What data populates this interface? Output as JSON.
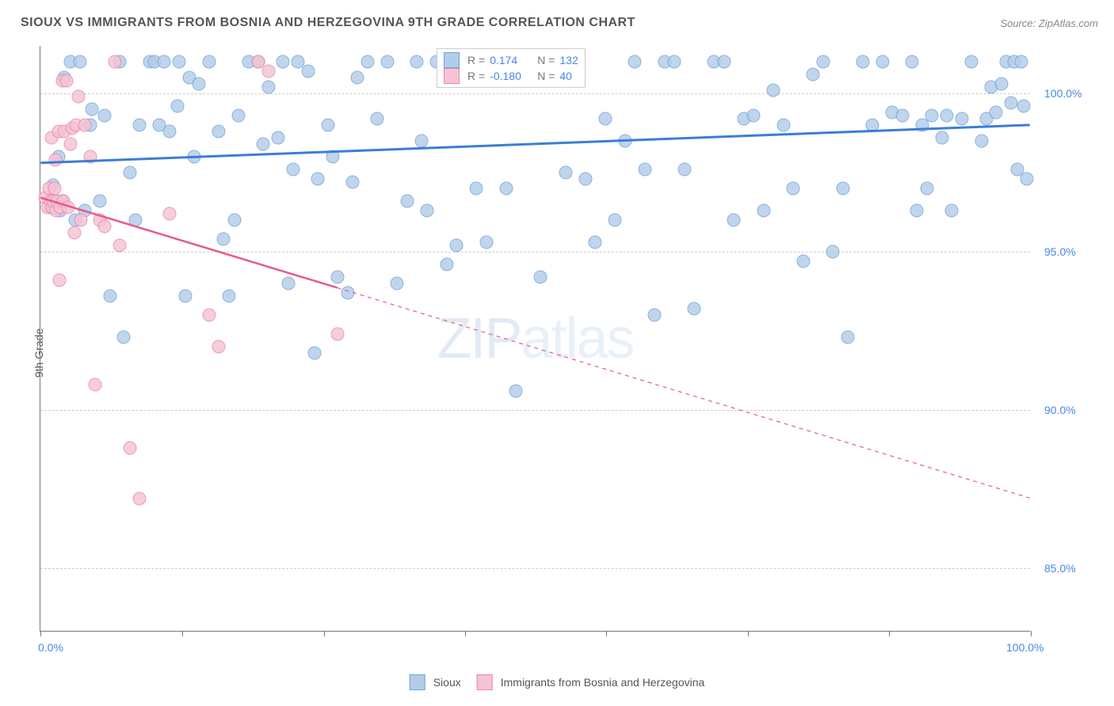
{
  "title": "SIOUX VS IMMIGRANTS FROM BOSNIA AND HERZEGOVINA 9TH GRADE CORRELATION CHART",
  "source_label": "Source: ",
  "source_name": "ZipAtlas.com",
  "y_axis_label": "9th Grade",
  "watermark_heavy": "ZIP",
  "watermark_light": "atlas",
  "chart": {
    "type": "scatter",
    "background_color": "#ffffff",
    "grid_color": "#cccccc",
    "axis_color": "#777777",
    "xlim": [
      0,
      100
    ],
    "ylim": [
      83,
      101.5
    ],
    "y_ticks": [
      {
        "v": 85.0,
        "label": "85.0%"
      },
      {
        "v": 90.0,
        "label": "90.0%"
      },
      {
        "v": 95.0,
        "label": "95.0%"
      },
      {
        "v": 100.0,
        "label": "100.0%"
      }
    ],
    "x_ticks": [
      0,
      14.3,
      28.6,
      42.9,
      57.1,
      71.4,
      85.7,
      100
    ],
    "x_range_labels": {
      "min": "0.0%",
      "max": "100.0%"
    },
    "y_tick_label_color": "#4a86e8",
    "marker_radius": 8.5,
    "series": [
      {
        "name": "Sioux",
        "fill": "#b3cde8",
        "stroke": "#6fa3db",
        "R": "0.174",
        "N": "132",
        "regression": {
          "x1": 0,
          "y1": 97.8,
          "x2": 100,
          "y2": 99.0,
          "stroke": "#3b7dd8",
          "width": 3,
          "dash_after_x": null
        },
        "points": [
          [
            1,
            96.4
          ],
          [
            1.5,
            96.6
          ],
          [
            2,
            96.3
          ],
          [
            2.2,
            96.6
          ],
          [
            1.3,
            97.1
          ],
          [
            1.8,
            98.0
          ],
          [
            2.4,
            100.5
          ],
          [
            3,
            101.0
          ],
          [
            3.5,
            96.0
          ],
          [
            4,
            101.0
          ],
          [
            4.5,
            96.3
          ],
          [
            5,
            99.0
          ],
          [
            5.2,
            99.5
          ],
          [
            6,
            96.6
          ],
          [
            6.5,
            99.3
          ],
          [
            7,
            93.6
          ],
          [
            8,
            101.0
          ],
          [
            8.4,
            92.3
          ],
          [
            9,
            97.5
          ],
          [
            9.6,
            96.0
          ],
          [
            10,
            99.0
          ],
          [
            11,
            101.0
          ],
          [
            11.5,
            101.0
          ],
          [
            12,
            99.0
          ],
          [
            12.5,
            101.0
          ],
          [
            13,
            98.8
          ],
          [
            13.8,
            99.6
          ],
          [
            14,
            101.0
          ],
          [
            14.6,
            93.6
          ],
          [
            15,
            100.5
          ],
          [
            15.5,
            98.0
          ],
          [
            16,
            100.3
          ],
          [
            17,
            101.0
          ],
          [
            18,
            98.8
          ],
          [
            18.5,
            95.4
          ],
          [
            19,
            93.6
          ],
          [
            19.6,
            96.0
          ],
          [
            20,
            99.3
          ],
          [
            21,
            101.0
          ],
          [
            22,
            101.0
          ],
          [
            22.5,
            98.4
          ],
          [
            23,
            100.2
          ],
          [
            24,
            98.6
          ],
          [
            24.5,
            101.0
          ],
          [
            25,
            94.0
          ],
          [
            25.5,
            97.6
          ],
          [
            26,
            101.0
          ],
          [
            27,
            100.7
          ],
          [
            27.7,
            91.8
          ],
          [
            28,
            97.3
          ],
          [
            29,
            99.0
          ],
          [
            29.5,
            98.0
          ],
          [
            30,
            94.2
          ],
          [
            31,
            93.7
          ],
          [
            31.5,
            97.2
          ],
          [
            32,
            100.5
          ],
          [
            33,
            101.0
          ],
          [
            34,
            99.2
          ],
          [
            35,
            101.0
          ],
          [
            36,
            94.0
          ],
          [
            37,
            96.6
          ],
          [
            38,
            101.0
          ],
          [
            38.5,
            98.5
          ],
          [
            39,
            96.3
          ],
          [
            40,
            101.0
          ],
          [
            41,
            94.6
          ],
          [
            42,
            95.2
          ],
          [
            43,
            101.0
          ],
          [
            44,
            97.0
          ],
          [
            45,
            95.3
          ],
          [
            46,
            101.0
          ],
          [
            47,
            97.0
          ],
          [
            48,
            90.6
          ],
          [
            49,
            101.0
          ],
          [
            50,
            101.0
          ],
          [
            50.5,
            94.2
          ],
          [
            52,
            101.0
          ],
          [
            53,
            97.5
          ],
          [
            55,
            97.3
          ],
          [
            56,
            95.3
          ],
          [
            57,
            99.2
          ],
          [
            58,
            96.0
          ],
          [
            59,
            98.5
          ],
          [
            60,
            101.0
          ],
          [
            61,
            97.6
          ],
          [
            62,
            93.0
          ],
          [
            63,
            101.0
          ],
          [
            64,
            101.0
          ],
          [
            65,
            97.6
          ],
          [
            66,
            93.2
          ],
          [
            68,
            101.0
          ],
          [
            69,
            101.0
          ],
          [
            70,
            96.0
          ],
          [
            71,
            99.2
          ],
          [
            72,
            99.3
          ],
          [
            73,
            96.3
          ],
          [
            74,
            100.1
          ],
          [
            75,
            99.0
          ],
          [
            76,
            97.0
          ],
          [
            77,
            94.7
          ],
          [
            78,
            100.6
          ],
          [
            79,
            101.0
          ],
          [
            80,
            95.0
          ],
          [
            81,
            97.0
          ],
          [
            81.5,
            92.3
          ],
          [
            83,
            101.0
          ],
          [
            84,
            99.0
          ],
          [
            85,
            101.0
          ],
          [
            86,
            99.4
          ],
          [
            87,
            99.3
          ],
          [
            88,
            101.0
          ],
          [
            88.5,
            96.3
          ],
          [
            89,
            99.0
          ],
          [
            89.5,
            97.0
          ],
          [
            90,
            99.3
          ],
          [
            91,
            98.6
          ],
          [
            91.5,
            99.3
          ],
          [
            92,
            96.3
          ],
          [
            93,
            99.2
          ],
          [
            94,
            101.0
          ],
          [
            95,
            98.5
          ],
          [
            95.5,
            99.2
          ],
          [
            96,
            100.2
          ],
          [
            96.5,
            99.4
          ],
          [
            97,
            100.3
          ],
          [
            97.5,
            101.0
          ],
          [
            98,
            99.7
          ],
          [
            98.3,
            101.0
          ],
          [
            98.6,
            97.6
          ],
          [
            99,
            101.0
          ],
          [
            99.3,
            99.6
          ],
          [
            99.6,
            97.3
          ]
        ]
      },
      {
        "name": "Immigrants from Bosnia and Herzegovina",
        "fill": "#f5c3d3",
        "stroke": "#e886ab",
        "R": "-0.180",
        "N": "40",
        "regression": {
          "x1": 0,
          "y1": 96.7,
          "x2": 100,
          "y2": 87.2,
          "stroke": "#e75a8a",
          "width": 2.5,
          "dash_after_x": 30
        },
        "points": [
          [
            0.5,
            96.7
          ],
          [
            0.7,
            96.4
          ],
          [
            0.9,
            97.0
          ],
          [
            1.0,
            96.6
          ],
          [
            1.1,
            98.6
          ],
          [
            1.2,
            96.4
          ],
          [
            1.3,
            96.6
          ],
          [
            1.4,
            97.0
          ],
          [
            1.5,
            97.9
          ],
          [
            1.6,
            96.3
          ],
          [
            1.7,
            96.6
          ],
          [
            1.8,
            98.8
          ],
          [
            1.9,
            94.1
          ],
          [
            2.0,
            96.4
          ],
          [
            2.2,
            100.4
          ],
          [
            2.3,
            96.6
          ],
          [
            2.4,
            98.8
          ],
          [
            2.6,
            100.4
          ],
          [
            2.8,
            96.4
          ],
          [
            3.0,
            98.4
          ],
          [
            3.2,
            98.9
          ],
          [
            3.4,
            95.6
          ],
          [
            3.6,
            99.0
          ],
          [
            3.8,
            99.9
          ],
          [
            4.1,
            96.0
          ],
          [
            4.5,
            99.0
          ],
          [
            5.0,
            98.0
          ],
          [
            5.5,
            90.8
          ],
          [
            6.0,
            96.0
          ],
          [
            6.5,
            95.8
          ],
          [
            7.5,
            101.0
          ],
          [
            8.0,
            95.2
          ],
          [
            9.0,
            88.8
          ],
          [
            10.0,
            87.2
          ],
          [
            13.0,
            96.2
          ],
          [
            17.0,
            93.0
          ],
          [
            18.0,
            92.0
          ],
          [
            22.0,
            101.0
          ],
          [
            23.0,
            100.7
          ],
          [
            30.0,
            92.4
          ]
        ]
      }
    ]
  },
  "legend_static_text": {
    "R": "R =",
    "N": "N ="
  }
}
